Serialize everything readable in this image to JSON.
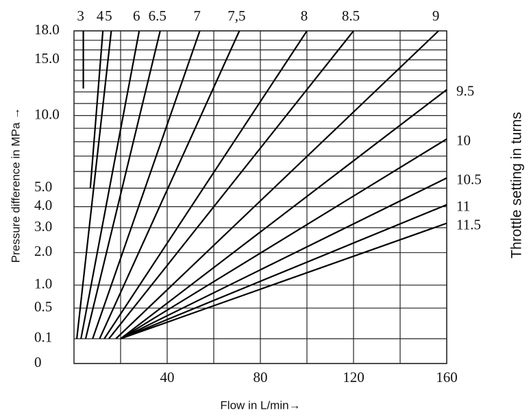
{
  "chart_data": {
    "type": "line",
    "y_label": "Pressure difference in MPa →",
    "x_label": "Flow in L/min→",
    "y2_label": "Throttle setting in turns",
    "yscale": "sqrt",
    "xlim": [
      0,
      160
    ],
    "xticks": [
      40,
      80,
      120,
      160
    ],
    "xminor": [
      20,
      60,
      100,
      140
    ],
    "ylim": [
      0,
      18
    ],
    "yticks": [
      0,
      0.1,
      0.5,
      {
        "value": 1,
        "label": "1.0"
      },
      {
        "value": 2,
        "label": "2.0"
      },
      {
        "value": 3,
        "label": "3.0"
      },
      {
        "value": 4,
        "label": "4.0"
      },
      {
        "value": 5,
        "label": "5.0"
      },
      {
        "value": 10,
        "label": "10.0"
      },
      {
        "value": 15,
        "label": "15.0"
      },
      {
        "value": 18,
        "label": "18.0"
      }
    ],
    "yminor": [
      6,
      7,
      8,
      9,
      11,
      12,
      13,
      14,
      16,
      17
    ],
    "grid": true,
    "color": "#000000",
    "series": [
      {
        "name": "3",
        "x": [
          4,
          4
        ],
        "values": [
          12.3,
          18
        ]
      },
      {
        "name": "4",
        "x": [
          7,
          12.4
        ],
        "values": [
          5,
          18
        ]
      },
      {
        "name": "5",
        "x": [
          1.2,
          16
        ],
        "values": [
          0.1,
          18
        ]
      },
      {
        "name": "6",
        "x": [
          3,
          28
        ],
        "values": [
          0.1,
          18
        ]
      },
      {
        "name": "6.5",
        "x": [
          5,
          37
        ],
        "values": [
          0.1,
          18
        ]
      },
      {
        "name": "7",
        "x": [
          8,
          54
        ],
        "values": [
          0.1,
          18
        ]
      },
      {
        "name": "7,5",
        "x": [
          11,
          71
        ],
        "values": [
          0.1,
          18
        ]
      },
      {
        "name": "8",
        "x": [
          13,
          100
        ],
        "values": [
          0.1,
          18
        ]
      },
      {
        "name": "8.5",
        "x": [
          15,
          120
        ],
        "values": [
          0.1,
          18
        ]
      },
      {
        "name": "9",
        "x": [
          18,
          156.5
        ],
        "values": [
          0.1,
          18
        ]
      },
      {
        "name": "9.5",
        "x": [
          20,
          160
        ],
        "values": [
          0.1,
          12.2
        ]
      },
      {
        "name": "10",
        "x": [
          20,
          160
        ],
        "values": [
          0.1,
          8.2
        ]
      },
      {
        "name": "10.5",
        "x": [
          20,
          160
        ],
        "values": [
          0.1,
          5.6
        ]
      },
      {
        "name": "11",
        "x": [
          20,
          160
        ],
        "values": [
          0.1,
          4.1
        ]
      },
      {
        "name": "11.5",
        "x": [
          20,
          160
        ],
        "values": [
          0.1,
          3.2
        ]
      }
    ]
  }
}
